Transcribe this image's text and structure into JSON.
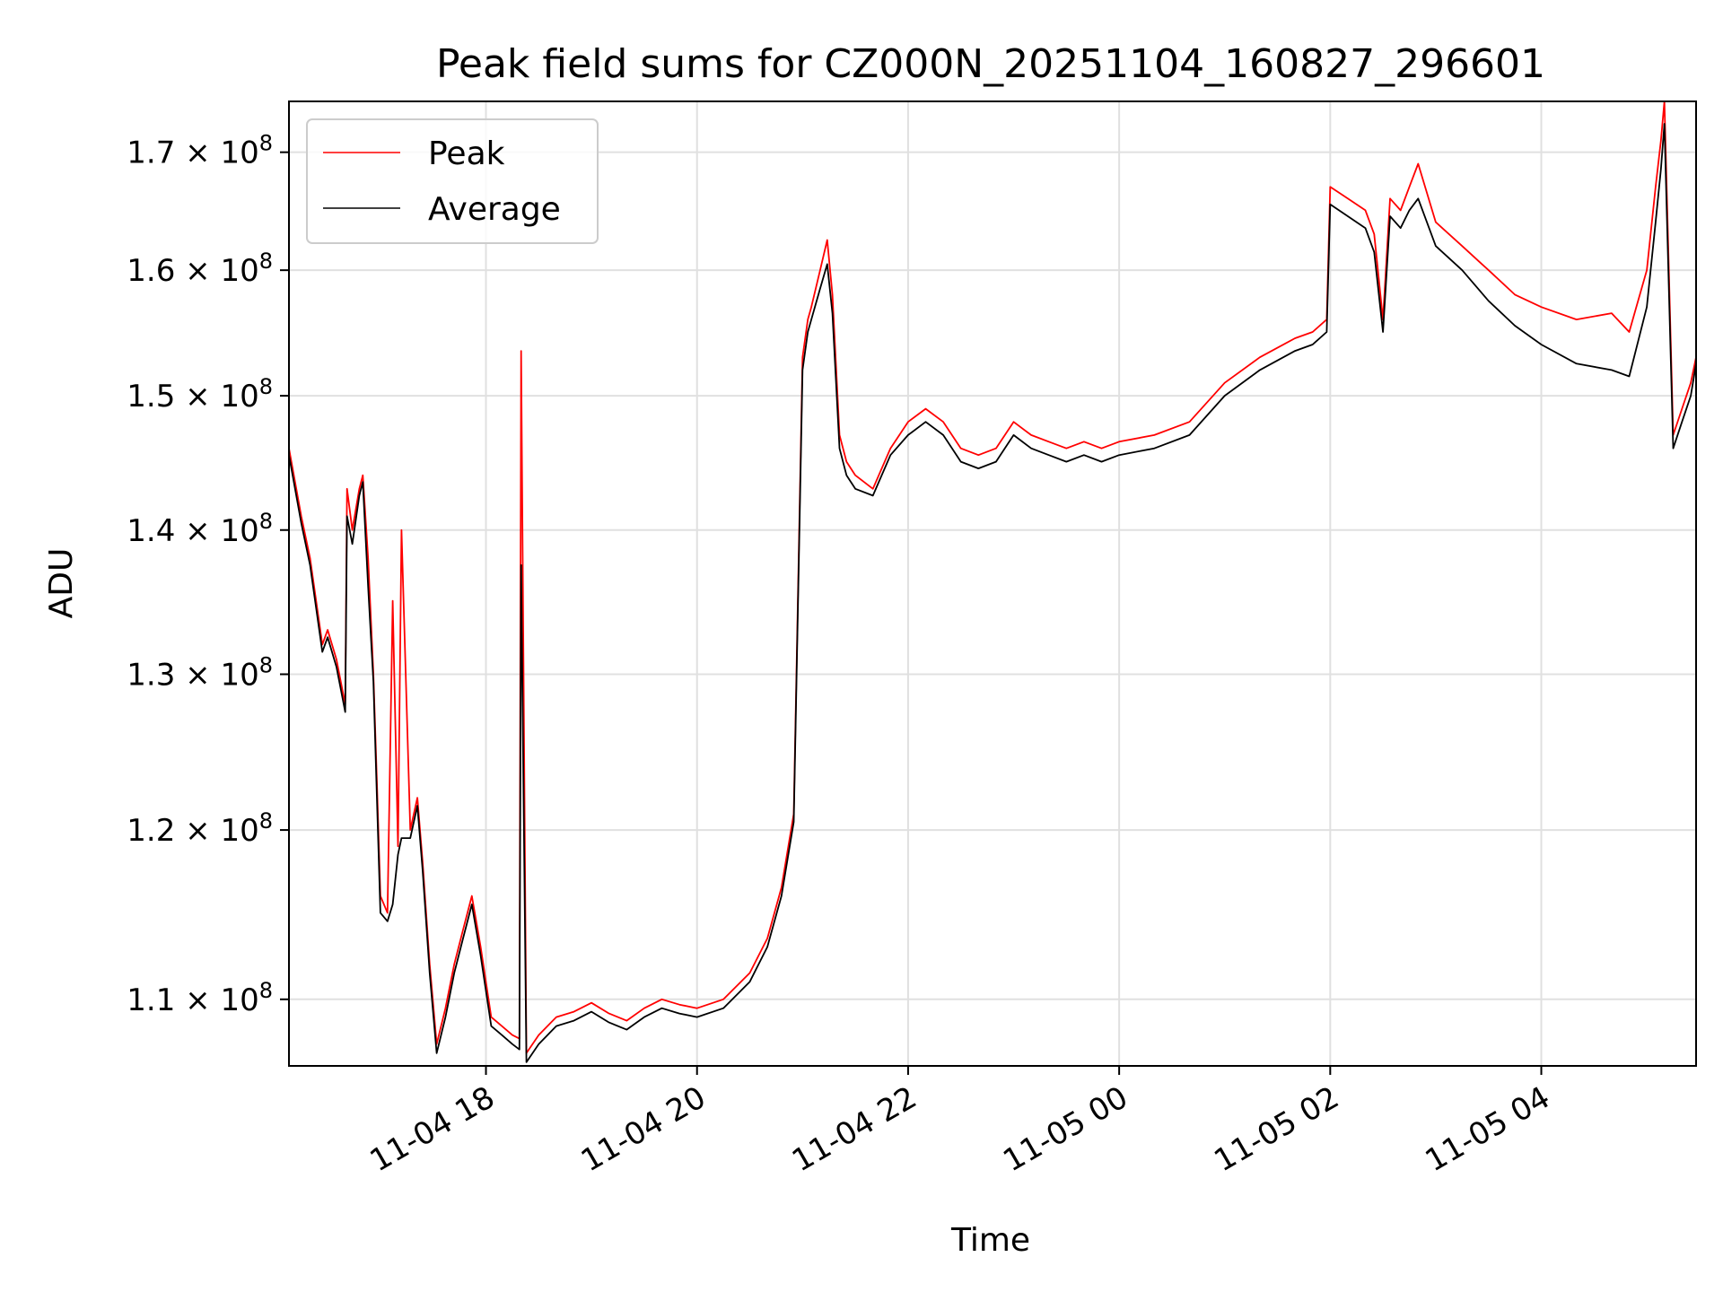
{
  "chart_data": {
    "type": "line",
    "title": "Peak field sums for CZ000N_20251104_160827_296601",
    "xlabel": "Time",
    "ylabel": "ADU",
    "y_scale": "log",
    "grid": true,
    "legend_position": "upper-left",
    "xlim": [
      "2025-11-04 16:08",
      "2025-11-05 05:28"
    ],
    "ylim": [
      106300000,
      174500000
    ],
    "x_ticks": [
      {
        "value": "2025-11-04 18:00",
        "label": "11-04 18"
      },
      {
        "value": "2025-11-04 20:00",
        "label": "11-04 20"
      },
      {
        "value": "2025-11-04 22:00",
        "label": "11-04 22"
      },
      {
        "value": "2025-11-05 00:00",
        "label": "11-05 00"
      },
      {
        "value": "2025-11-05 02:00",
        "label": "11-05 02"
      },
      {
        "value": "2025-11-05 04:00",
        "label": "11-05 04"
      }
    ],
    "y_ticks": [
      {
        "value": 110000000,
        "mantissa": "1.1",
        "base": "10",
        "exp": "8"
      },
      {
        "value": 120000000,
        "mantissa": "1.2",
        "base": "10",
        "exp": "8"
      },
      {
        "value": 130000000,
        "mantissa": "1.3",
        "base": "10",
        "exp": "8"
      },
      {
        "value": 140000000,
        "mantissa": "1.4",
        "base": "10",
        "exp": "8"
      },
      {
        "value": 150000000,
        "mantissa": "1.5",
        "base": "10",
        "exp": "8"
      },
      {
        "value": 160000000,
        "mantissa": "1.6",
        "base": "10",
        "exp": "8"
      },
      {
        "value": 170000000,
        "mantissa": "1.7",
        "base": "10",
        "exp": "8"
      }
    ],
    "series": [
      {
        "name": "Peak",
        "color": "#ff0000",
        "x": [
          "2025-11-04 16:08",
          "2025-11-04 16:15",
          "2025-11-04 16:20",
          "2025-11-04 16:27",
          "2025-11-04 16:30",
          "2025-11-04 16:35",
          "2025-11-04 16:40",
          "2025-11-04 16:41",
          "2025-11-04 16:44",
          "2025-11-04 16:48",
          "2025-11-04 16:50",
          "2025-11-04 16:53",
          "2025-11-04 16:56",
          "2025-11-04 16:58",
          "2025-11-04 17:00",
          "2025-11-04 17:04",
          "2025-11-04 17:07",
          "2025-11-04 17:10",
          "2025-11-04 17:12",
          "2025-11-04 17:17",
          "2025-11-04 17:21",
          "2025-11-04 17:24",
          "2025-11-04 17:28",
          "2025-11-04 17:32",
          "2025-11-04 17:37",
          "2025-11-04 17:42",
          "2025-11-04 17:47",
          "2025-11-04 17:52",
          "2025-11-04 17:57",
          "2025-11-04 18:03",
          "2025-11-04 18:09",
          "2025-11-04 18:15",
          "2025-11-04 18:19",
          "2025-11-04 18:20",
          "2025-11-04 18:23",
          "2025-11-04 18:30",
          "2025-11-04 18:40",
          "2025-11-04 18:50",
          "2025-11-04 19:00",
          "2025-11-04 19:10",
          "2025-11-04 19:20",
          "2025-11-04 19:30",
          "2025-11-04 19:40",
          "2025-11-04 19:50",
          "2025-11-04 20:00",
          "2025-11-04 20:15",
          "2025-11-04 20:30",
          "2025-11-04 20:40",
          "2025-11-04 20:48",
          "2025-11-04 20:55",
          "2025-11-04 21:00",
          "2025-11-04 21:03",
          "2025-11-04 21:05",
          "2025-11-04 21:10",
          "2025-11-04 21:14",
          "2025-11-04 21:17",
          "2025-11-04 21:21",
          "2025-11-04 21:25",
          "2025-11-04 21:30",
          "2025-11-04 21:40",
          "2025-11-04 21:50",
          "2025-11-04 22:00",
          "2025-11-04 22:10",
          "2025-11-04 22:20",
          "2025-11-04 22:30",
          "2025-11-04 22:40",
          "2025-11-04 22:50",
          "2025-11-04 23:00",
          "2025-11-04 23:10",
          "2025-11-04 23:20",
          "2025-11-04 23:30",
          "2025-11-04 23:40",
          "2025-11-04 23:50",
          "2025-11-05 00:00",
          "2025-11-05 00:20",
          "2025-11-05 00:40",
          "2025-11-05 01:00",
          "2025-11-05 01:20",
          "2025-11-05 01:40",
          "2025-11-05 01:50",
          "2025-11-05 01:58",
          "2025-11-05 02:00",
          "2025-11-05 02:10",
          "2025-11-05 02:20",
          "2025-11-05 02:25",
          "2025-11-05 02:30",
          "2025-11-05 02:34",
          "2025-11-05 02:40",
          "2025-11-05 02:45",
          "2025-11-05 02:50",
          "2025-11-05 03:00",
          "2025-11-05 03:15",
          "2025-11-05 03:30",
          "2025-11-05 03:45",
          "2025-11-05 04:00",
          "2025-11-05 04:20",
          "2025-11-05 04:40",
          "2025-11-05 04:50",
          "2025-11-05 05:00",
          "2025-11-05 05:05",
          "2025-11-05 05:08",
          "2025-11-05 05:10",
          "2025-11-05 05:15",
          "2025-11-05 05:20",
          "2025-11-05 05:25",
          "2025-11-05 05:28"
        ],
        "y": [
          146000000,
          141000000,
          138000000,
          132000000,
          133000000,
          131000000,
          128000000,
          143000000,
          140000000,
          143000000,
          144000000,
          138000000,
          130000000,
          123000000,
          116000000,
          115000000,
          135000000,
          119000000,
          140000000,
          120000000,
          122000000,
          118000000,
          112000000,
          107500000,
          109500000,
          112000000,
          114000000,
          116000000,
          113000000,
          109000000,
          108500000,
          108000000,
          107800000,
          153500000,
          107000000,
          108000000,
          109000000,
          109300000,
          109800000,
          109200000,
          108800000,
          109500000,
          110000000,
          109700000,
          109500000,
          110000000,
          111500000,
          113500000,
          116500000,
          121000000,
          153000000,
          156000000,
          157000000,
          160000000,
          162500000,
          158000000,
          147000000,
          145000000,
          144000000,
          143000000,
          146000000,
          148000000,
          149000000,
          148000000,
          146000000,
          145500000,
          146000000,
          148000000,
          147000000,
          146500000,
          146000000,
          146500000,
          146000000,
          146500000,
          147000000,
          148000000,
          151000000,
          153000000,
          154500000,
          155000000,
          156000000,
          167000000,
          166000000,
          165000000,
          163000000,
          156000000,
          166000000,
          165000000,
          167000000,
          169000000,
          164000000,
          162000000,
          160000000,
          158000000,
          157000000,
          156000000,
          156500000,
          155000000,
          160000000,
          167000000,
          171000000,
          174500000,
          147000000,
          149000000,
          151000000,
          153000000
        ]
      },
      {
        "name": "Average",
        "color": "#000000",
        "x": [
          "2025-11-04 16:08",
          "2025-11-04 16:15",
          "2025-11-04 16:20",
          "2025-11-04 16:27",
          "2025-11-04 16:30",
          "2025-11-04 16:35",
          "2025-11-04 16:40",
          "2025-11-04 16:41",
          "2025-11-04 16:44",
          "2025-11-04 16:48",
          "2025-11-04 16:50",
          "2025-11-04 16:53",
          "2025-11-04 16:56",
          "2025-11-04 16:58",
          "2025-11-04 17:00",
          "2025-11-04 17:04",
          "2025-11-04 17:07",
          "2025-11-04 17:10",
          "2025-11-04 17:12",
          "2025-11-04 17:17",
          "2025-11-04 17:21",
          "2025-11-04 17:24",
          "2025-11-04 17:28",
          "2025-11-04 17:32",
          "2025-11-04 17:37",
          "2025-11-04 17:42",
          "2025-11-04 17:47",
          "2025-11-04 17:52",
          "2025-11-04 17:57",
          "2025-11-04 18:03",
          "2025-11-04 18:09",
          "2025-11-04 18:15",
          "2025-11-04 18:19",
          "2025-11-04 18:20",
          "2025-11-04 18:23",
          "2025-11-04 18:30",
          "2025-11-04 18:40",
          "2025-11-04 18:50",
          "2025-11-04 19:00",
          "2025-11-04 19:10",
          "2025-11-04 19:20",
          "2025-11-04 19:30",
          "2025-11-04 19:40",
          "2025-11-04 19:50",
          "2025-11-04 20:00",
          "2025-11-04 20:15",
          "2025-11-04 20:30",
          "2025-11-04 20:40",
          "2025-11-04 20:48",
          "2025-11-04 20:55",
          "2025-11-04 21:00",
          "2025-11-04 21:03",
          "2025-11-04 21:05",
          "2025-11-04 21:10",
          "2025-11-04 21:14",
          "2025-11-04 21:17",
          "2025-11-04 21:21",
          "2025-11-04 21:25",
          "2025-11-04 21:30",
          "2025-11-04 21:40",
          "2025-11-04 21:50",
          "2025-11-04 22:00",
          "2025-11-04 22:10",
          "2025-11-04 22:20",
          "2025-11-04 22:30",
          "2025-11-04 22:40",
          "2025-11-04 22:50",
          "2025-11-04 23:00",
          "2025-11-04 23:10",
          "2025-11-04 23:20",
          "2025-11-04 23:30",
          "2025-11-04 23:40",
          "2025-11-04 23:50",
          "2025-11-05 00:00",
          "2025-11-05 00:20",
          "2025-11-05 00:40",
          "2025-11-05 01:00",
          "2025-11-05 01:20",
          "2025-11-05 01:40",
          "2025-11-05 01:50",
          "2025-11-05 01:58",
          "2025-11-05 02:00",
          "2025-11-05 02:10",
          "2025-11-05 02:20",
          "2025-11-05 02:25",
          "2025-11-05 02:30",
          "2025-11-05 02:34",
          "2025-11-05 02:40",
          "2025-11-05 02:45",
          "2025-11-05 02:50",
          "2025-11-05 03:00",
          "2025-11-05 03:15",
          "2025-11-05 03:30",
          "2025-11-05 03:45",
          "2025-11-05 04:00",
          "2025-11-05 04:20",
          "2025-11-05 04:40",
          "2025-11-05 04:50",
          "2025-11-05 05:00",
          "2025-11-05 05:05",
          "2025-11-05 05:08",
          "2025-11-05 05:10",
          "2025-11-05 05:15",
          "2025-11-05 05:20",
          "2025-11-05 05:25",
          "2025-11-05 05:28"
        ],
        "y": [
          145500000,
          140500000,
          137500000,
          131500000,
          132500000,
          130500000,
          127500000,
          141000000,
          139000000,
          142500000,
          143500000,
          136000000,
          129500000,
          122000000,
          115000000,
          114500000,
          115500000,
          118500000,
          119500000,
          119500000,
          121500000,
          117500000,
          111500000,
          107000000,
          109000000,
          111500000,
          113500000,
          115500000,
          112500000,
          108500000,
          108000000,
          107500000,
          107200000,
          137500000,
          106500000,
          107500000,
          108500000,
          108800000,
          109300000,
          108700000,
          108300000,
          109000000,
          109500000,
          109200000,
          109000000,
          109500000,
          111000000,
          113000000,
          116000000,
          120500000,
          152000000,
          155000000,
          156000000,
          158500000,
          160500000,
          156500000,
          146000000,
          144000000,
          143000000,
          142500000,
          145500000,
          147000000,
          148000000,
          147000000,
          145000000,
          144500000,
          145000000,
          147000000,
          146000000,
          145500000,
          145000000,
          145500000,
          145000000,
          145500000,
          146000000,
          147000000,
          150000000,
          152000000,
          153500000,
          154000000,
          155000000,
          165500000,
          164500000,
          163500000,
          161500000,
          155000000,
          164500000,
          163500000,
          165000000,
          166000000,
          162000000,
          160000000,
          157500000,
          155500000,
          154000000,
          152500000,
          152000000,
          151500000,
          157000000,
          164000000,
          168500000,
          172500000,
          146000000,
          148000000,
          150000000,
          152500000
        ]
      }
    ]
  }
}
